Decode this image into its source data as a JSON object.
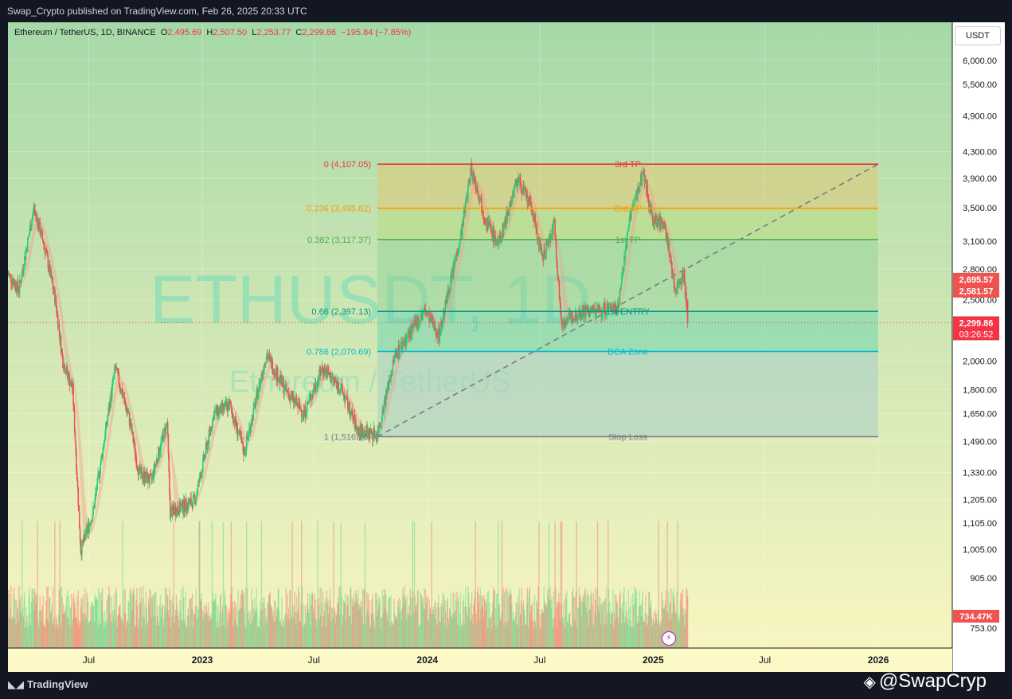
{
  "header": {
    "publisher_line": "Swap_Crypto published on TradingView.com, Feb 26, 2025 20:33 UTC"
  },
  "symbol_info": {
    "name": "Ethereum / TetherUS, 1D, BINANCE",
    "o_label": "O",
    "o_value": "2,495.69",
    "h_label": "H",
    "h_value": "2,507.50",
    "l_label": "L",
    "l_value": "2,253.77",
    "c_label": "C",
    "c_value": "2,299.86",
    "change": "−195.84 (−7.85%)"
  },
  "currency_button": "USDT",
  "watermark": {
    "big": "ETHUSDT, 1D",
    "small": "Ethereum / TetherUS"
  },
  "footer": {
    "brand": "TradingView",
    "handle": "@SwapCryp"
  },
  "colors": {
    "bg_top": "#a6d9a8",
    "bg_bottom": "#f8f5c0",
    "up": "#26d17c",
    "down": "#ef5350",
    "ma_band": "#f2a08f",
    "fib_0": "#e53935",
    "fib_0236": "#ff9800",
    "fib_0382": "#4caf50",
    "fib_066": "#009688",
    "fib_0786": "#00bcd4",
    "fib_1": "#787b86",
    "last_price_bg": "#f23645",
    "marker_bg": "#ef5350"
  },
  "chart_data": {
    "type": "candlestick",
    "symbol": "ETHUSDT",
    "interval": "1D",
    "exchange": "BINANCE",
    "scale": "log",
    "ylim": [
      700,
      6900
    ],
    "x_tick_labels": [
      "Jul",
      "2023",
      "Jul",
      "2024",
      "Jul",
      "2025",
      "Jul",
      "2026"
    ],
    "x_ticks": [
      "2022-07-01",
      "2023-01-01",
      "2023-07-01",
      "2024-01-01",
      "2024-07-01",
      "2025-01-01",
      "2025-07-01",
      "2026-01-01"
    ],
    "x_range": [
      "2022-02-20",
      "2026-05-01"
    ],
    "y_tick_labels": [
      "6,000.00",
      "5,500.00",
      "4,900.00",
      "4,300.00",
      "3,900.00",
      "3,500.00",
      "3,100.00",
      "2,800.00",
      "2,500.00",
      "2,000.00",
      "1,800.00",
      "1,650.00",
      "1,490.00",
      "1,330.00",
      "1,205.00",
      "1,105.00",
      "1,005.00",
      "905.00",
      "753.00"
    ],
    "y_ticks": [
      6000,
      5500,
      4900,
      4300,
      3900,
      3500,
      3100,
      2800,
      2500,
      2000,
      1800,
      1650,
      1490,
      1330,
      1205,
      1105,
      1005,
      905,
      753
    ],
    "price_path": [
      {
        "date": "2022-02-20",
        "close": 2750
      },
      {
        "date": "2022-03-10",
        "close": 2600
      },
      {
        "date": "2022-04-03",
        "close": 3500
      },
      {
        "date": "2022-04-20",
        "close": 3050
      },
      {
        "date": "2022-05-08",
        "close": 2500
      },
      {
        "date": "2022-05-20",
        "close": 2000
      },
      {
        "date": "2022-06-05",
        "close": 1800
      },
      {
        "date": "2022-06-18",
        "close": 1000
      },
      {
        "date": "2022-07-08",
        "close": 1150
      },
      {
        "date": "2022-08-13",
        "close": 1950
      },
      {
        "date": "2022-09-06",
        "close": 1600
      },
      {
        "date": "2022-09-20",
        "close": 1330
      },
      {
        "date": "2022-10-10",
        "close": 1290
      },
      {
        "date": "2022-11-05",
        "close": 1600
      },
      {
        "date": "2022-11-10",
        "close": 1150
      },
      {
        "date": "2022-12-20",
        "close": 1200
      },
      {
        "date": "2023-01-20",
        "close": 1650
      },
      {
        "date": "2023-02-15",
        "close": 1700
      },
      {
        "date": "2023-03-10",
        "close": 1430
      },
      {
        "date": "2023-04-15",
        "close": 2050
      },
      {
        "date": "2023-05-15",
        "close": 1800
      },
      {
        "date": "2023-06-15",
        "close": 1650
      },
      {
        "date": "2023-07-15",
        "close": 1950
      },
      {
        "date": "2023-08-15",
        "close": 1800
      },
      {
        "date": "2023-09-10",
        "close": 1550
      },
      {
        "date": "2023-10-12",
        "close": 1530
      },
      {
        "date": "2023-11-10",
        "close": 2050
      },
      {
        "date": "2023-12-28",
        "close": 2400
      },
      {
        "date": "2024-01-20",
        "close": 2200
      },
      {
        "date": "2024-02-25",
        "close": 3200
      },
      {
        "date": "2024-03-12",
        "close": 4050
      },
      {
        "date": "2024-04-05",
        "close": 3350
      },
      {
        "date": "2024-04-25",
        "close": 3050
      },
      {
        "date": "2024-05-26",
        "close": 3900
      },
      {
        "date": "2024-06-20",
        "close": 3450
      },
      {
        "date": "2024-07-05",
        "close": 2900
      },
      {
        "date": "2024-07-25",
        "close": 3300
      },
      {
        "date": "2024-08-05",
        "close": 2300
      },
      {
        "date": "2024-09-10",
        "close": 2400
      },
      {
        "date": "2024-10-05",
        "close": 2400
      },
      {
        "date": "2024-11-05",
        "close": 2450
      },
      {
        "date": "2024-11-25",
        "close": 3400
      },
      {
        "date": "2024-12-16",
        "close": 4000
      },
      {
        "date": "2024-12-31",
        "close": 3350
      },
      {
        "date": "2025-01-20",
        "close": 3300
      },
      {
        "date": "2025-02-05",
        "close": 2600
      },
      {
        "date": "2025-02-20",
        "close": 2750
      },
      {
        "date": "2025-02-26",
        "close": 2299.86
      }
    ],
    "fib_retracement": {
      "anchor_low": {
        "date": "2023-10-12",
        "price": 1516.26
      },
      "anchor_high": {
        "date": "2026-01-01",
        "price": 4107.05
      },
      "levels": [
        {
          "ratio_label": "0 (4,107.05)",
          "price": 4107.05,
          "tag": "3rd TP",
          "color": "#e53935"
        },
        {
          "ratio_label": "0.236 (3,495.62)",
          "price": 3495.62,
          "tag": "2nd TP",
          "color": "#ff9800"
        },
        {
          "ratio_label": "0.382 (3,117.37)",
          "price": 3117.37,
          "tag": "1st TP",
          "color": "#4caf50"
        },
        {
          "ratio_label": "0.66 (2,397.13)",
          "price": 2397.13,
          "tag": "1st ENTRY",
          "color": "#009688"
        },
        {
          "ratio_label": "0.786 (2,070.69)",
          "price": 2070.69,
          "tag": "DCA Zone",
          "color": "#00bcd4"
        },
        {
          "ratio_label": "1 (1,516.26)",
          "price": 1516.26,
          "tag": "Stop Loss",
          "color": "#787b86"
        }
      ]
    },
    "price_markers": [
      {
        "label": "2,695.57",
        "price": 2695.57
      },
      {
        "label": "2,581.57",
        "price": 2581.57
      }
    ],
    "last_price": {
      "label": "2,299.86",
      "price": 2299.86,
      "countdown": "03:26:52"
    },
    "volume_label": "734.47K"
  }
}
